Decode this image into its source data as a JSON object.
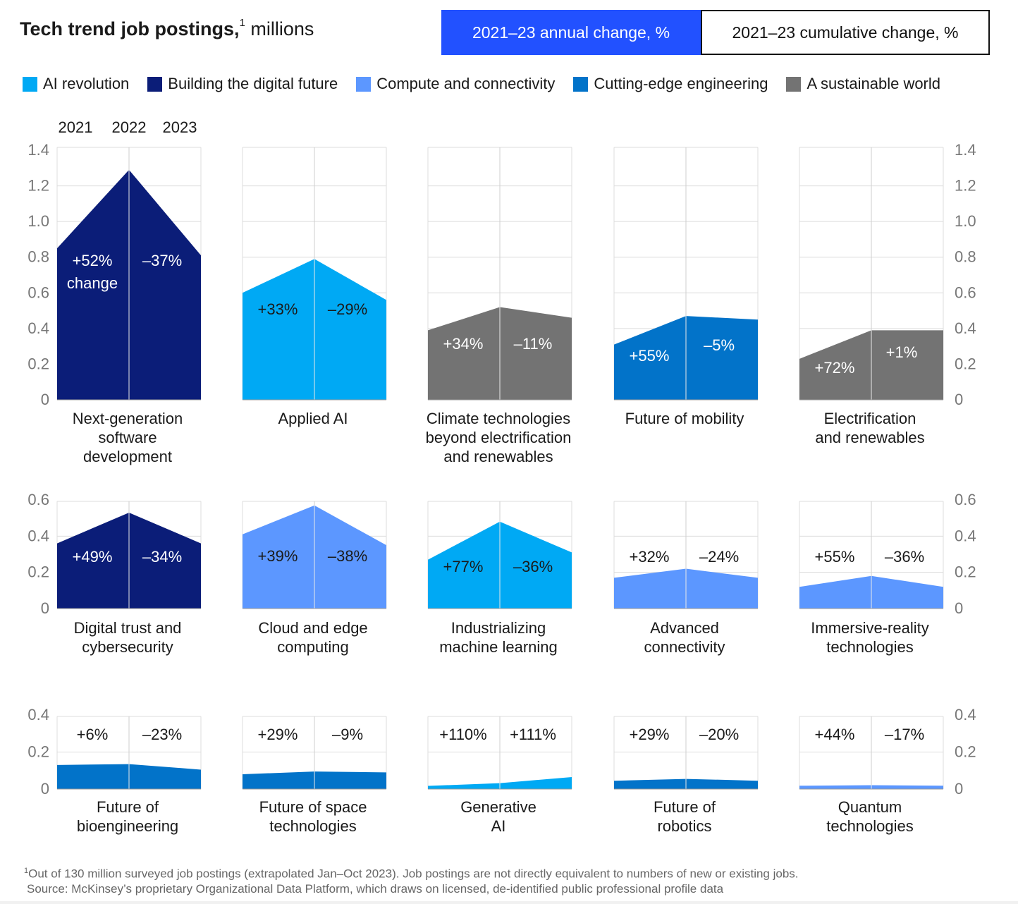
{
  "title": {
    "bold": "Tech trend job postings,",
    "sup": "1",
    "unit": " millions"
  },
  "toggle": {
    "annual_label": "2021–23 annual change, %",
    "cumulative_label": "2021–23 cumulative change, %"
  },
  "legend": [
    {
      "label": "AI revolution",
      "color": "#00a9f4"
    },
    {
      "label": "Building the digital future",
      "color": "#0b1d78"
    },
    {
      "label": "Compute and connectivity",
      "color": "#5c97ff"
    },
    {
      "label": "Cutting-edge engineering",
      "color": "#0273c9"
    },
    {
      "label": "A sustainable world",
      "color": "#737373"
    }
  ],
  "year_labels": [
    "2021",
    "2022",
    "2023"
  ],
  "chart_data": {
    "type": "area",
    "x": [
      "2021",
      "2022",
      "2023"
    ],
    "rows": [
      {
        "ylim": [
          0,
          1.4
        ],
        "yticks": [
          "0",
          "0.2",
          "0.4",
          "0.6",
          "0.8",
          "1.0",
          "1.2",
          "1.4"
        ],
        "panels": [
          {
            "name": "Next-generation software development",
            "lines": [
              "Next-generation",
              "software",
              "development"
            ],
            "category": "Building the digital future",
            "values": [
              0.85,
              1.29,
              0.81
            ],
            "change1": "+52%",
            "change1_sub": "change",
            "change2": "–37%"
          },
          {
            "name": "Applied AI",
            "lines": [
              "Applied AI"
            ],
            "category": "AI revolution",
            "values": [
              0.6,
              0.79,
              0.56
            ],
            "change1": "+33%",
            "change2": "–29%"
          },
          {
            "name": "Climate technologies beyond electrification and renewables",
            "lines": [
              "Climate technologies",
              "beyond electrification",
              "and renewables"
            ],
            "category": "A sustainable world",
            "values": [
              0.39,
              0.52,
              0.46
            ],
            "change1": "+34%",
            "change2": "–11%"
          },
          {
            "name": "Future of mobility",
            "lines": [
              "Future of mobility"
            ],
            "category": "Cutting-edge engineering",
            "values": [
              0.31,
              0.47,
              0.45
            ],
            "change1": "+55%",
            "change2": "–5%"
          },
          {
            "name": "Electrification and renewables",
            "lines": [
              "Electrification",
              "and renewables"
            ],
            "category": "A sustainable world",
            "values": [
              0.23,
              0.39,
              0.39
            ],
            "change1": "+72%",
            "change2": "+1%"
          }
        ]
      },
      {
        "ylim": [
          0,
          0.6
        ],
        "yticks": [
          "0",
          "0.2",
          "0.4",
          "0.6"
        ],
        "panels": [
          {
            "name": "Digital trust and cybersecurity",
            "lines": [
              "Digital trust and",
              "cybersecurity"
            ],
            "category": "Building the digital future",
            "values": [
              0.36,
              0.53,
              0.36
            ],
            "change1": "+49%",
            "change2": "–34%"
          },
          {
            "name": "Cloud and edge computing",
            "lines": [
              "Cloud and edge",
              "computing"
            ],
            "category": "Compute and connectivity",
            "values": [
              0.41,
              0.57,
              0.35
            ],
            "change1": "+39%",
            "change2": "–38%"
          },
          {
            "name": "Industrializing machine learning",
            "lines": [
              "Industrializing",
              "machine learning"
            ],
            "category": "AI revolution",
            "values": [
              0.27,
              0.48,
              0.31
            ],
            "change1": "+77%",
            "change2": "–36%"
          },
          {
            "name": "Advanced connectivity",
            "lines": [
              "Advanced",
              "connectivity"
            ],
            "category": "Compute and connectivity",
            "values": [
              0.17,
              0.22,
              0.17
            ],
            "change1": "+32%",
            "change2": "–24%"
          },
          {
            "name": "Immersive-reality technologies",
            "lines": [
              "Immersive-reality",
              "technologies"
            ],
            "category": "Compute and connectivity",
            "values": [
              0.12,
              0.18,
              0.12
            ],
            "change1": "+55%",
            "change2": "–36%"
          }
        ]
      },
      {
        "ylim": [
          0,
          0.4
        ],
        "yticks": [
          "0",
          "0.2",
          "0.4"
        ],
        "panels": [
          {
            "name": "Future of bioengineering",
            "lines": [
              "Future of",
              "bioengineering"
            ],
            "category": "Cutting-edge engineering",
            "values": [
              0.13,
              0.135,
              0.105
            ],
            "change1": "+6%",
            "change2": "–23%"
          },
          {
            "name": "Future of space technologies",
            "lines": [
              "Future of space",
              "technologies"
            ],
            "category": "Cutting-edge engineering",
            "values": [
              0.08,
              0.095,
              0.09
            ],
            "change1": "+29%",
            "change2": "–9%"
          },
          {
            "name": "Generative AI",
            "lines": [
              "Generative",
              "AI"
            ],
            "category": "AI revolution",
            "values": [
              0.017,
              0.032,
              0.065
            ],
            "change1": "+110%",
            "change2": "+111%"
          },
          {
            "name": "Future of robotics",
            "lines": [
              "Future of",
              "robotics"
            ],
            "category": "Cutting-edge engineering",
            "values": [
              0.045,
              0.055,
              0.045
            ],
            "change1": "+29%",
            "change2": "–20%"
          },
          {
            "name": "Quantum technologies",
            "lines": [
              "Quantum",
              "technologies"
            ],
            "category": "Compute and connectivity",
            "values": [
              0.018,
              0.021,
              0.018
            ],
            "change1": "+44%",
            "change2": "–17%"
          }
        ]
      }
    ]
  },
  "footnote": {
    "sup": "1",
    "line1": "Out of 130 million surveyed job postings (extrapolated Jan–Oct 2023). Job postings are not directly equivalent to numbers of new or existing jobs.",
    "line2": "Source: McKinsey’s proprietary Organizational Data Platform, which draws on licensed, de-identified public professional profile data"
  }
}
